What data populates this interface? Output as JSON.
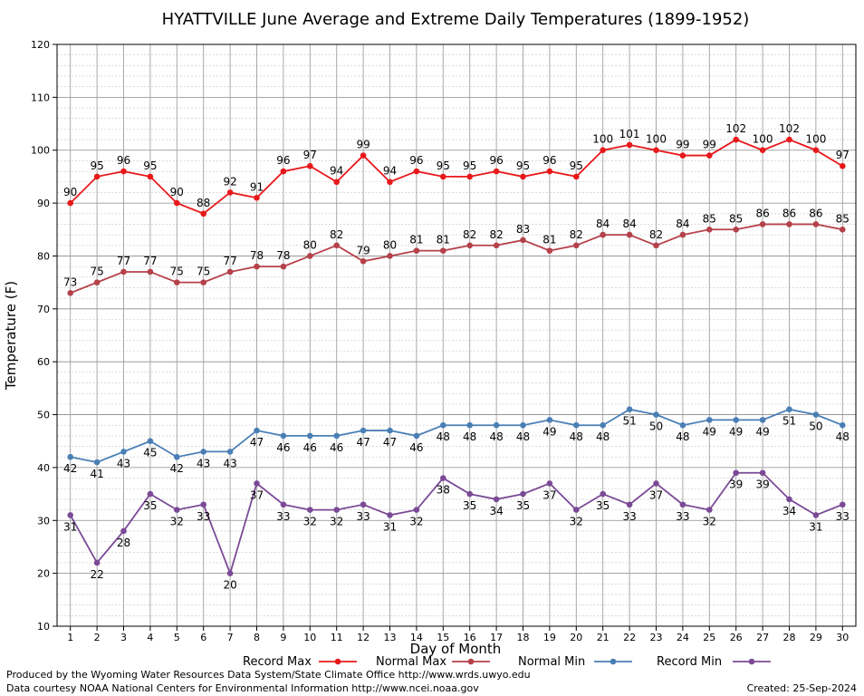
{
  "chart_data": {
    "type": "line",
    "title": "HYATTVILLE June Average and Extreme Daily Temperatures (1899-1952)",
    "xlabel": "Day of Month",
    "ylabel": "Temperature (F)",
    "x": [
      1,
      2,
      3,
      4,
      5,
      6,
      7,
      8,
      9,
      10,
      11,
      12,
      13,
      14,
      15,
      16,
      17,
      18,
      19,
      20,
      21,
      22,
      23,
      24,
      25,
      26,
      27,
      28,
      29,
      30
    ],
    "ylim": [
      10,
      120
    ],
    "yticks": [
      10,
      20,
      30,
      40,
      50,
      60,
      70,
      80,
      90,
      100,
      110,
      120
    ],
    "grid": true,
    "legend_position": "bottom",
    "series": [
      {
        "name": "Record Max",
        "color": "#e8191b",
        "values": [
          90,
          95,
          96,
          95,
          90,
          88,
          92,
          91,
          96,
          97,
          94,
          99,
          94,
          96,
          95,
          95,
          96,
          95,
          96,
          95,
          100,
          101,
          100,
          99,
          99,
          102,
          100,
          102,
          100,
          97
        ]
      },
      {
        "name": "Normal Max",
        "color": "#b5414a",
        "values": [
          73,
          75,
          77,
          77,
          75,
          75,
          77,
          78,
          78,
          80,
          82,
          79,
          80,
          81,
          81,
          82,
          82,
          83,
          81,
          82,
          84,
          84,
          82,
          84,
          85,
          85,
          86,
          86,
          86,
          85
        ]
      },
      {
        "name": "Normal Min",
        "color": "#4a7fb5",
        "values": [
          42,
          41,
          43,
          45,
          42,
          43,
          43,
          47,
          46,
          46,
          46,
          47,
          47,
          46,
          48,
          48,
          48,
          48,
          49,
          48,
          48,
          51,
          50,
          48,
          49,
          49,
          49,
          51,
          50,
          48
        ]
      },
      {
        "name": "Record Min",
        "color": "#7b4a96",
        "values": [
          31,
          22,
          28,
          35,
          32,
          33,
          20,
          37,
          33,
          32,
          32,
          33,
          31,
          32,
          38,
          35,
          34,
          35,
          37,
          32,
          35,
          33,
          37,
          33,
          32,
          39,
          39,
          34,
          31,
          33
        ]
      }
    ]
  },
  "footer": {
    "produced_by": "Produced by the Wyoming Water Resources Data System/State Climate Office http://www.wrds.uwyo.edu",
    "courtesy": "Data courtesy NOAA National Centers for Environmental Information http://www.ncei.noaa.gov",
    "created": "Created:  25-Sep-2024"
  }
}
